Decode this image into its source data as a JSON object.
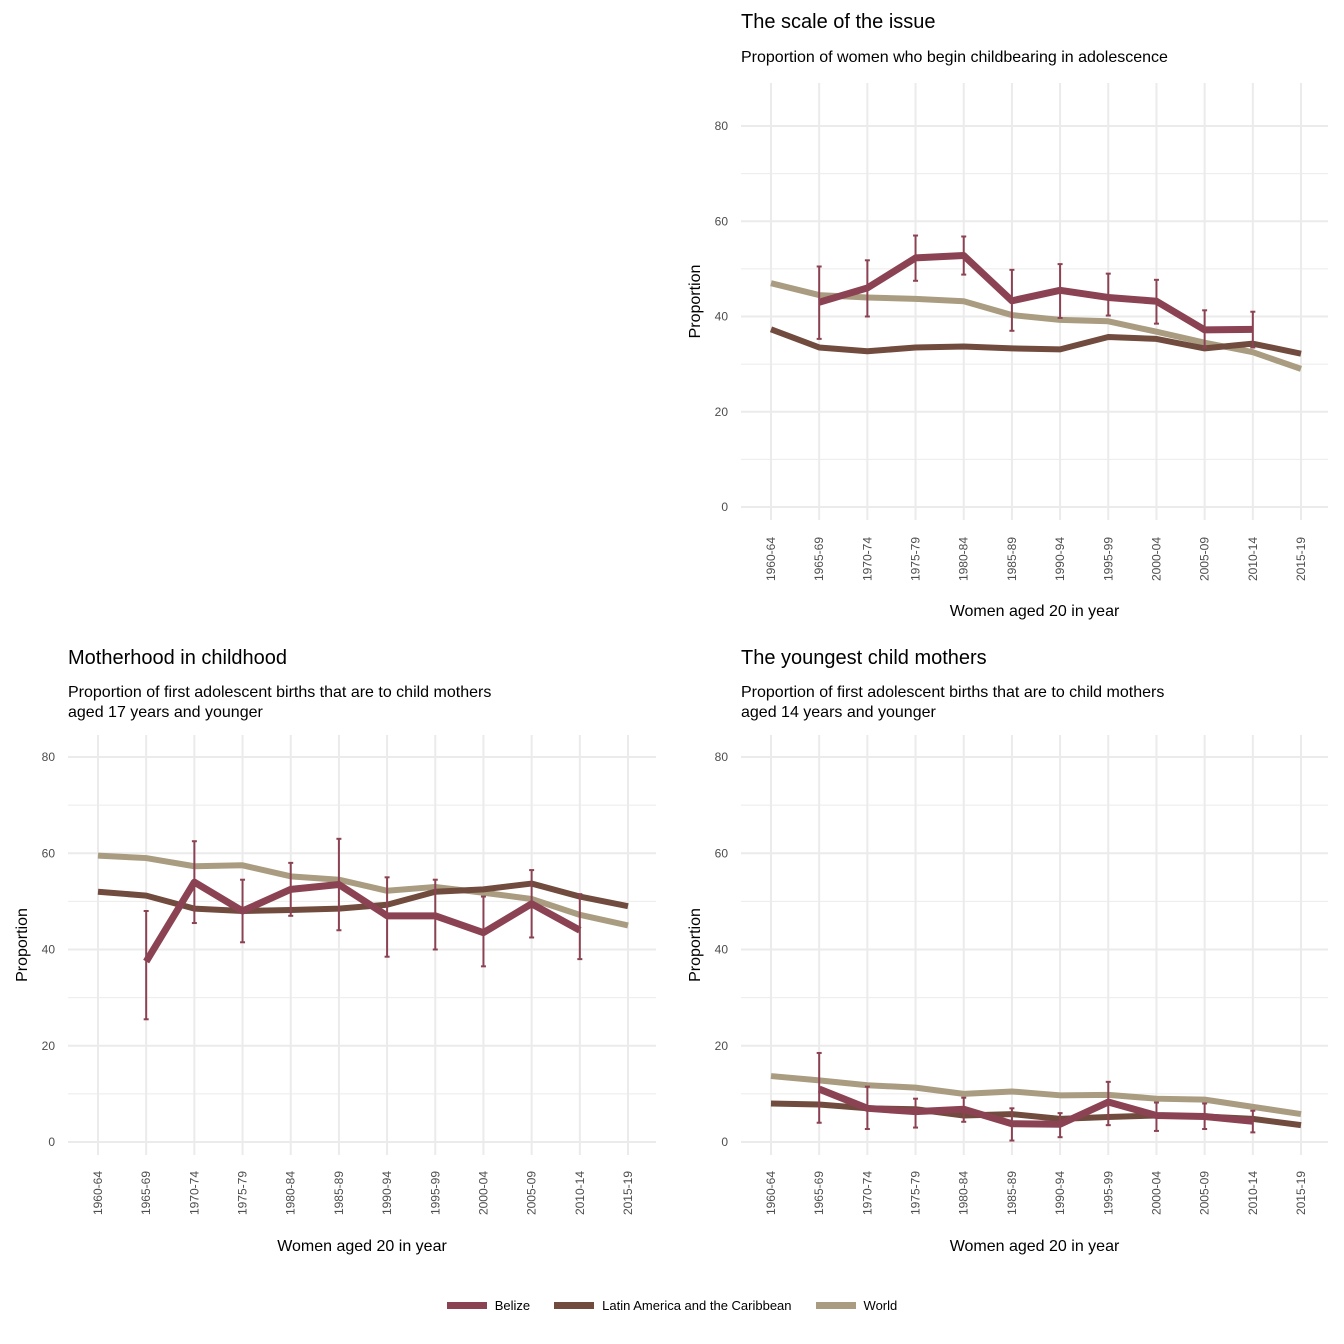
{
  "chart_data": [
    {
      "type": "line",
      "title": "The scale of the issue",
      "subtitle": "Proportion of women who begin childbearing in adolescence",
      "xlabel": "Women aged 20 in year",
      "ylabel": "Proportion",
      "ylim": [
        0,
        80
      ],
      "yticks": [
        0,
        20,
        40,
        60,
        80
      ],
      "grid": true,
      "categories": [
        "1960-64",
        "1965-69",
        "1970-74",
        "1975-79",
        "1980-84",
        "1985-89",
        "1990-94",
        "1995-99",
        "2000-04",
        "2005-09",
        "2010-14",
        "2015-19"
      ],
      "series": [
        {
          "name": "World",
          "values": [
            47,
            44.5,
            44,
            43.7,
            43.2,
            40.3,
            39.3,
            39,
            36.8,
            34.5,
            32.5,
            29
          ]
        },
        {
          "name": "Latin America and the Caribbean",
          "values": [
            37.3,
            33.5,
            32.7,
            33.5,
            33.7,
            33.3,
            33.1,
            35.7,
            35.3,
            33.3,
            34.3,
            32.2
          ]
        },
        {
          "name": "Belize",
          "values": [
            null,
            43,
            46,
            52.3,
            52.8,
            43.3,
            45.5,
            44,
            43.2,
            37.2,
            37.3,
            null
          ],
          "error_low": [
            null,
            35.3,
            40,
            47.5,
            48.8,
            37,
            39.7,
            40.2,
            38.5,
            33.5,
            33.5,
            null
          ],
          "error_high": [
            null,
            50.5,
            51.8,
            57,
            56.8,
            49.8,
            51,
            49,
            47.7,
            41.3,
            41,
            null
          ]
        }
      ]
    },
    {
      "type": "line",
      "title": "Motherhood in childhood",
      "subtitle": [
        "Proportion of first adolescent births that are to child mothers",
        "aged 17 years and younger"
      ],
      "xlabel": "Women aged 20 in year",
      "ylabel": "Proportion",
      "ylim": [
        0,
        80
      ],
      "yticks": [
        0,
        20,
        40,
        60,
        80
      ],
      "grid": true,
      "categories": [
        "1960-64",
        "1965-69",
        "1970-74",
        "1975-79",
        "1980-84",
        "1985-89",
        "1990-94",
        "1995-99",
        "2000-04",
        "2005-09",
        "2010-14",
        "2015-19"
      ],
      "series": [
        {
          "name": "World",
          "values": [
            59.5,
            59,
            57.3,
            57.5,
            55.2,
            54.5,
            52.2,
            53,
            51.8,
            50.5,
            47.2,
            45
          ]
        },
        {
          "name": "Latin America and the Caribbean",
          "values": [
            52,
            51.2,
            48.5,
            48,
            48.2,
            48.5,
            49.3,
            52,
            52.5,
            53.7,
            51,
            49
          ]
        },
        {
          "name": "Belize",
          "values": [
            null,
            37.5,
            54,
            48,
            52.5,
            53.5,
            47,
            47,
            43.5,
            49.5,
            44,
            null
          ],
          "error_low": [
            null,
            25.5,
            45.5,
            41.5,
            47,
            44,
            38.5,
            40,
            36.5,
            42.5,
            38,
            null
          ],
          "error_high": [
            null,
            48,
            62.5,
            54.5,
            58,
            63,
            55,
            54.5,
            51,
            56.5,
            51.5,
            null
          ]
        }
      ]
    },
    {
      "type": "line",
      "title": "The youngest child mothers",
      "subtitle": [
        "Proportion of first adolescent births that are to child mothers",
        "aged 14 years and younger"
      ],
      "xlabel": "Women aged 20 in year",
      "ylabel": "Proportion",
      "ylim": [
        0,
        80
      ],
      "yticks": [
        0,
        20,
        40,
        60,
        80
      ],
      "grid": true,
      "categories": [
        "1960-64",
        "1965-69",
        "1970-74",
        "1975-79",
        "1980-84",
        "1985-89",
        "1990-94",
        "1995-99",
        "2000-04",
        "2005-09",
        "2010-14",
        "2015-19"
      ],
      "series": [
        {
          "name": "World",
          "values": [
            13.7,
            12.8,
            11.8,
            11.3,
            10,
            10.5,
            9.7,
            9.8,
            9,
            8.8,
            7.3,
            5.8
          ]
        },
        {
          "name": "Latin America and the Caribbean",
          "values": [
            8,
            7.8,
            7,
            6.8,
            5.5,
            5.8,
            4.8,
            5.2,
            5.5,
            5.3,
            4.8,
            3.5
          ]
        },
        {
          "name": "Belize",
          "values": [
            null,
            11,
            7,
            6.3,
            6.8,
            3.8,
            3.7,
            8.3,
            5.5,
            5.3,
            4.3,
            null
          ],
          "error_low": [
            null,
            4,
            2.7,
            3,
            4.2,
            0.3,
            1,
            3.5,
            2.3,
            2.7,
            2,
            null
          ],
          "error_high": [
            null,
            18.5,
            11.5,
            9,
            9.2,
            7,
            6,
            12.5,
            8.2,
            8,
            6.5,
            null
          ]
        }
      ]
    }
  ],
  "legend": {
    "position": "bottom",
    "items": [
      {
        "name": "Belize",
        "color": "#8b4353"
      },
      {
        "name": "Latin America and the Caribbean",
        "color": "#714b3d"
      },
      {
        "name": "World",
        "color": "#a99c80"
      }
    ]
  },
  "colors": {
    "Belize": "#8b4353",
    "Latin America and the Caribbean": "#714b3d",
    "World": "#a99c80",
    "error_bar": "#8b4353",
    "grid": "#ebebeb"
  }
}
